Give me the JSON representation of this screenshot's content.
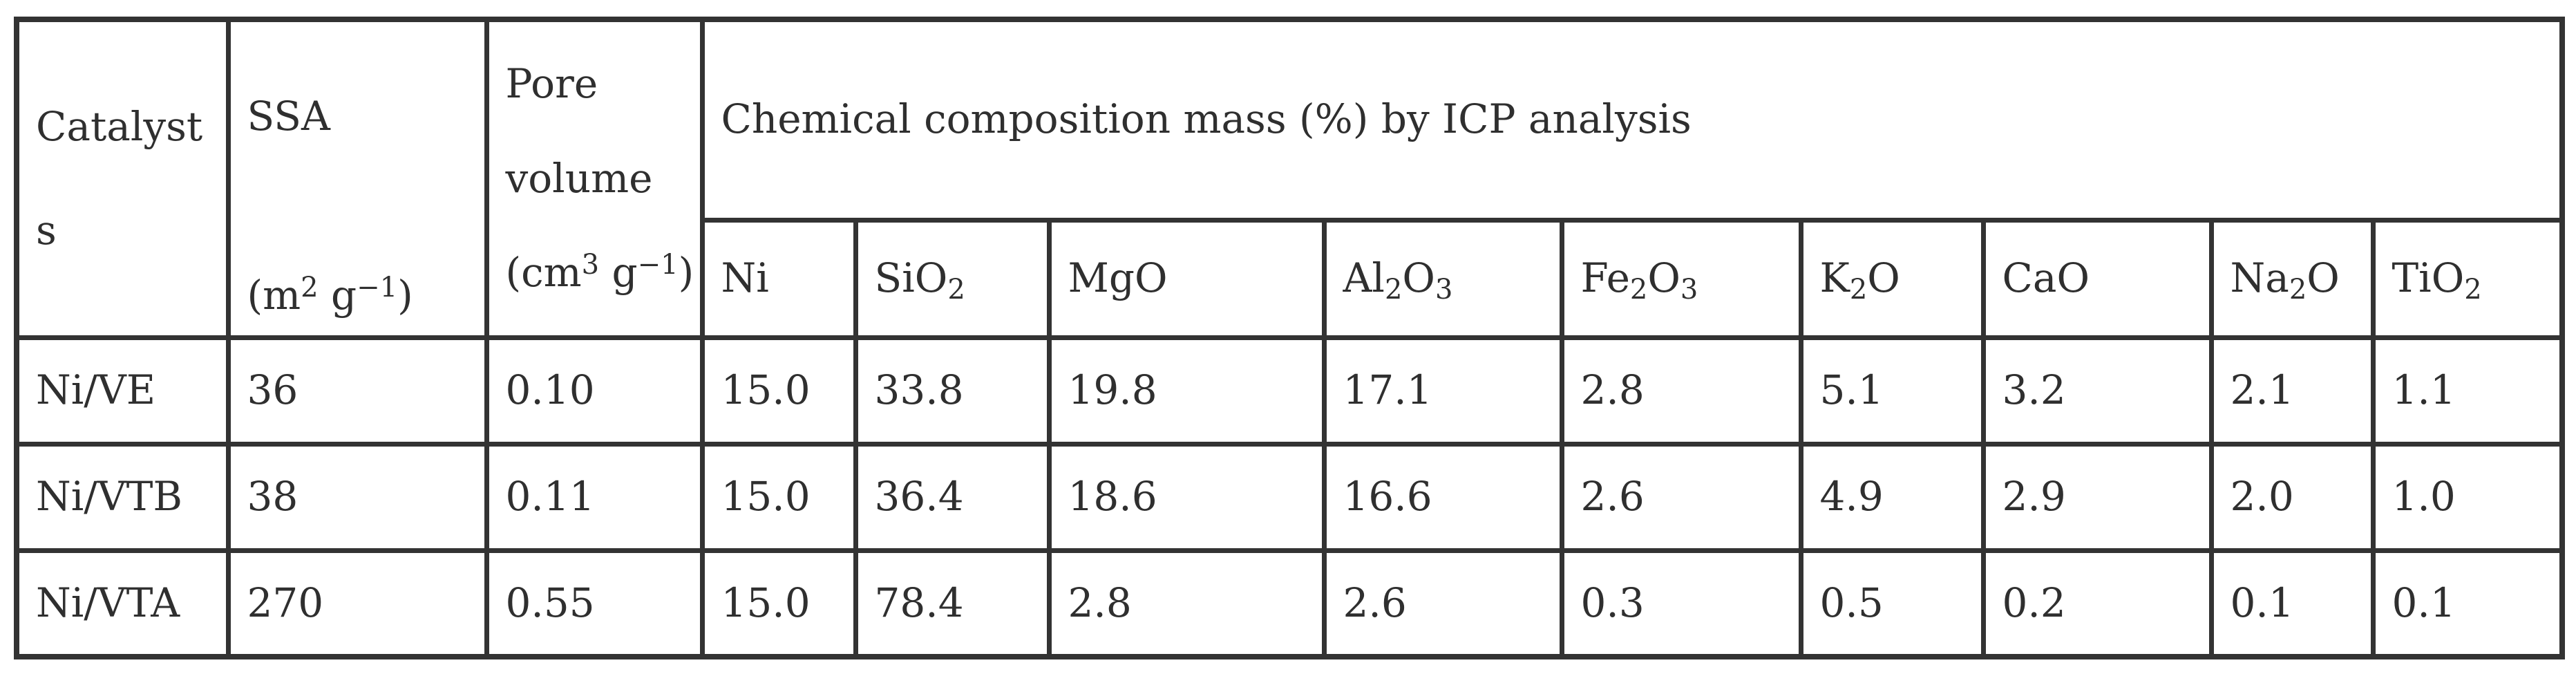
{
  "table": {
    "header": {
      "catalyst_line1": "Catalyst",
      "catalyst_line2": "s",
      "ssa_line1": "SSA",
      "ssa_unit_open": "(m",
      "ssa_unit_sup1": "2",
      "ssa_unit_mid": " g",
      "ssa_unit_sup2": "−1",
      "ssa_unit_close": ")",
      "pore_line1": "Pore",
      "pore_line2": "volume",
      "pore_unit_open": "(cm",
      "pore_unit_sup1": "3",
      "pore_unit_mid": " g",
      "pore_unit_sup2": "−1",
      "pore_unit_close": ")",
      "group": "Chemical composition mass (%) by ICP analysis",
      "components": [
        {
          "base": "Ni",
          "parts": [
            {
              "t": "Ni",
              "sub": ""
            }
          ]
        },
        {
          "base": "SiO2",
          "parts": [
            {
              "t": "SiO",
              "sub": "2"
            }
          ]
        },
        {
          "base": "MgO",
          "parts": [
            {
              "t": "MgO",
              "sub": ""
            }
          ]
        },
        {
          "base": "Al2O3",
          "parts": [
            {
              "t": "Al",
              "sub": "2"
            },
            {
              "t": "O",
              "sub": "3"
            }
          ]
        },
        {
          "base": "Fe2O3",
          "parts": [
            {
              "t": "Fe",
              "sub": "2"
            },
            {
              "t": "O",
              "sub": "3"
            }
          ]
        },
        {
          "base": "K2O",
          "parts": [
            {
              "t": "K",
              "sub": "2"
            },
            {
              "t": "O",
              "sub": ""
            }
          ]
        },
        {
          "base": "CaO",
          "parts": [
            {
              "t": "CaO",
              "sub": ""
            }
          ]
        },
        {
          "base": "Na2O",
          "parts": [
            {
              "t": "Na",
              "sub": "2"
            },
            {
              "t": "O",
              "sub": ""
            }
          ]
        },
        {
          "base": "TiO2",
          "parts": [
            {
              "t": "TiO",
              "sub": "2"
            }
          ]
        }
      ]
    },
    "rows": [
      {
        "catalyst": "Ni/VE",
        "ssa": "36",
        "pore": "0.10",
        "values": [
          "15.0",
          "33.8",
          "19.8",
          "17.1",
          "2.8",
          "5.1",
          "3.2",
          "2.1",
          "1.1"
        ]
      },
      {
        "catalyst": "Ni/VTB",
        "ssa": "38",
        "pore": "0.11",
        "values": [
          "15.0",
          "36.4",
          "18.6",
          "16.6",
          "2.6",
          "4.9",
          "2.9",
          "2.0",
          "1.0"
        ]
      },
      {
        "catalyst": "Ni/VTA",
        "ssa": "270",
        "pore": "0.55",
        "values": [
          "15.0",
          "78.4",
          "2.8",
          "2.6",
          "0.3",
          "0.5",
          "0.2",
          "0.1",
          "0.1"
        ]
      }
    ]
  }
}
